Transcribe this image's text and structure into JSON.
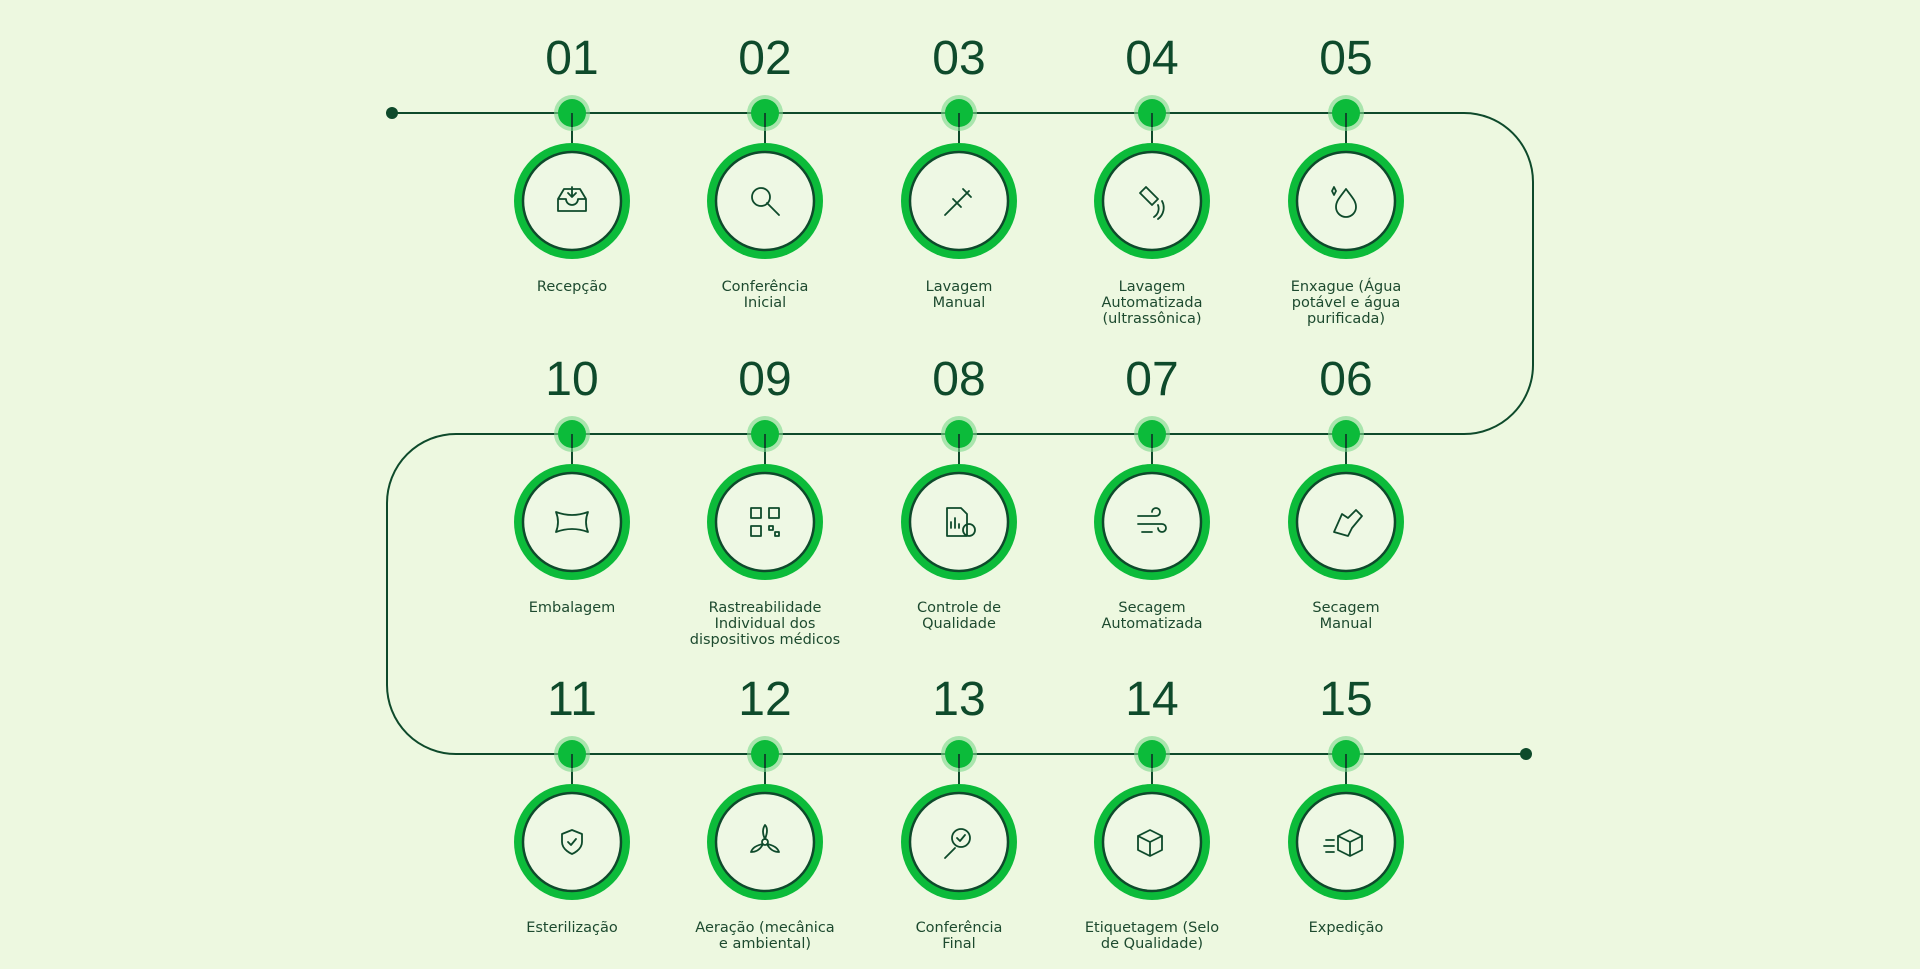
{
  "steps": [
    {
      "number": "01",
      "label": [
        "Recepção"
      ]
    },
    {
      "number": "02",
      "label": [
        "Conferência",
        "Inicial"
      ]
    },
    {
      "number": "03",
      "label": [
        "Lavagem",
        "Manual"
      ]
    },
    {
      "number": "04",
      "label": [
        "Lavagem",
        "Automatizada",
        "(ultrassônica)"
      ]
    },
    {
      "number": "05",
      "label": [
        "Enxague (Água",
        "potável e água",
        "purificada)"
      ]
    },
    {
      "number": "06",
      "label": [
        "Secagem",
        "Manual"
      ]
    },
    {
      "number": "07",
      "label": [
        "Secagem",
        "Automatizada"
      ]
    },
    {
      "number": "08",
      "label": [
        "Controle de",
        "Qualidade"
      ]
    },
    {
      "number": "09",
      "label": [
        "Rastreabilidade",
        "Individual dos",
        "dispositivos médicos"
      ]
    },
    {
      "number": "10",
      "label": [
        "Embalagem"
      ]
    },
    {
      "number": "11",
      "label": [
        "Esterilização"
      ]
    },
    {
      "number": "12",
      "label": [
        "Aeração (mecânica",
        "e ambiental)"
      ]
    },
    {
      "number": "13",
      "label": [
        "Conferência",
        "Final"
      ]
    },
    {
      "number": "14",
      "label": [
        "Etiquetagem (Selo",
        "de Qualidade)"
      ]
    },
    {
      "number": "15",
      "label": [
        "Expedição"
      ]
    }
  ]
}
